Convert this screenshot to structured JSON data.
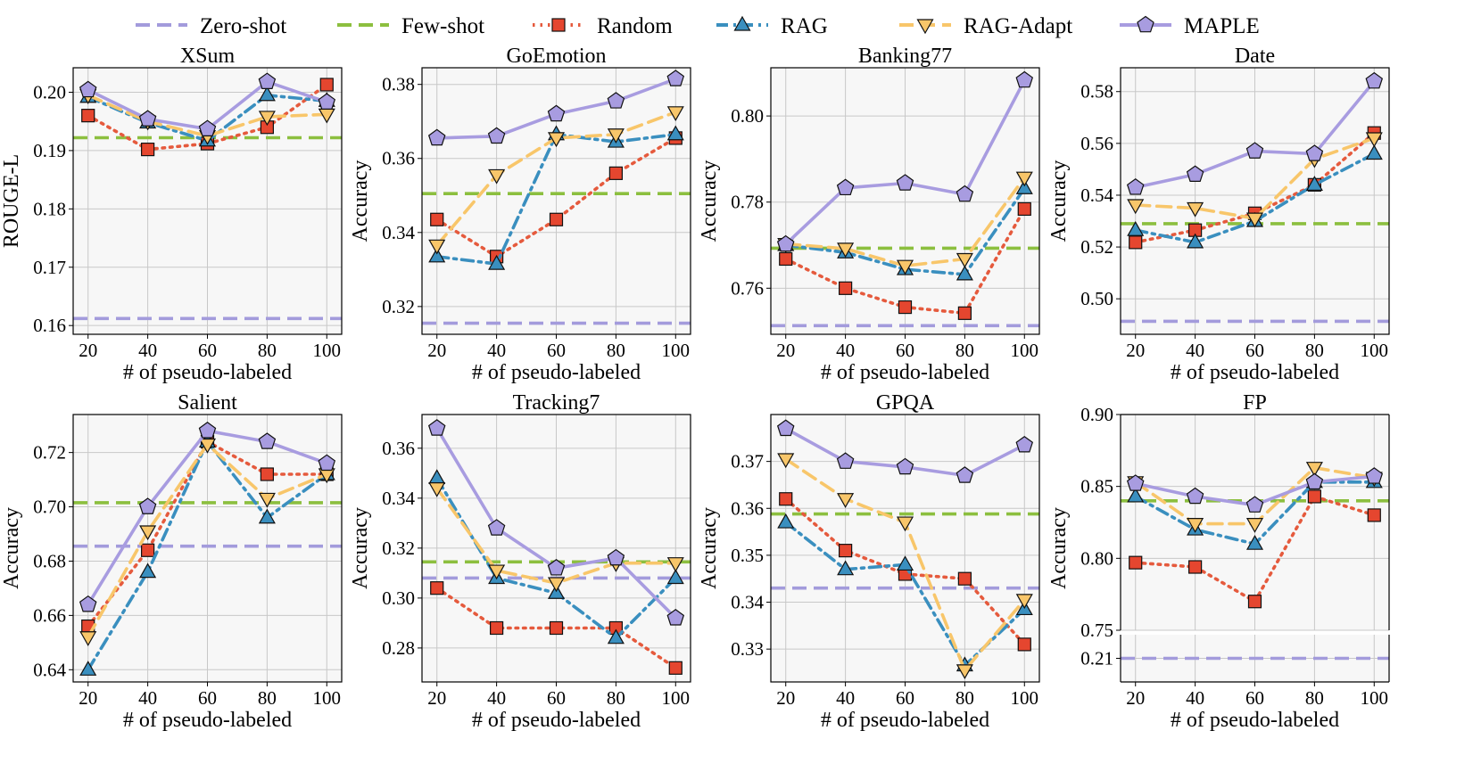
{
  "legend": [
    {
      "key": "zero",
      "label": "Zero-shot"
    },
    {
      "key": "few",
      "label": "Few-shot"
    },
    {
      "key": "random",
      "label": "Random"
    },
    {
      "key": "rag",
      "label": "RAG"
    },
    {
      "key": "ragadapt",
      "label": "RAG-Adapt"
    },
    {
      "key": "maple",
      "label": "MAPLE"
    }
  ],
  "styles": {
    "zero": {
      "color": "#a39bdc",
      "dash": "dash",
      "marker": "none"
    },
    "few": {
      "color": "#8cbf3f",
      "dash": "dash",
      "marker": "none"
    },
    "random": {
      "color": "#e55a3d",
      "dash": "dot",
      "marker": "square",
      "fill": "#e5462f"
    },
    "rag": {
      "color": "#3a8fbf",
      "dash": "dashdot",
      "marker": "triangle",
      "fill": "#3a8fbf"
    },
    "ragadapt": {
      "color": "#f8c66a",
      "dash": "dash",
      "marker": "triangle-down",
      "fill": "#f8c66a"
    },
    "maple": {
      "color": "#a89ce0",
      "dash": "solid",
      "marker": "pentagon",
      "fill": "#a89ce0"
    }
  },
  "chart_data": [
    {
      "type": "line",
      "title": "XSum",
      "xlabel": "# of pseudo-labeled",
      "ylabel": "ROUGE-L",
      "x": [
        20,
        40,
        60,
        80,
        100
      ],
      "ylim": [
        0.1585,
        0.2042
      ],
      "yticks": [
        0.16,
        0.17,
        0.18,
        0.19,
        0.2
      ],
      "ytick_labels": [
        "0.16",
        "0.17",
        "0.18",
        "0.19",
        "0.20"
      ],
      "hlines": {
        "zero": 0.1612,
        "few": 0.1922
      },
      "series": [
        {
          "key": "random",
          "name": "Random",
          "values": [
            0.196,
            0.1902,
            0.1912,
            0.194,
            0.2013
          ]
        },
        {
          "key": "rag",
          "name": "RAG",
          "values": [
            0.1992,
            0.1948,
            0.1917,
            0.1995,
            0.1985
          ]
        },
        {
          "key": "ragadapt",
          "name": "RAG-Adapt",
          "values": [
            0.1995,
            0.195,
            0.1925,
            0.1958,
            0.1962
          ]
        },
        {
          "key": "maple",
          "name": "MAPLE",
          "values": [
            0.2004,
            0.1954,
            0.1937,
            0.2018,
            0.1983
          ]
        }
      ]
    },
    {
      "type": "line",
      "title": "GoEmotion",
      "xlabel": "# of pseudo-labeled",
      "ylabel": "Accuracy",
      "x": [
        20,
        40,
        60,
        80,
        100
      ],
      "ylim": [
        0.3125,
        0.3845
      ],
      "yticks": [
        0.32,
        0.34,
        0.36,
        0.38
      ],
      "ytick_labels": [
        "0.32",
        "0.34",
        "0.36",
        "0.38"
      ],
      "hlines": {
        "zero": 0.3155,
        "few": 0.3505
      },
      "series": [
        {
          "key": "random",
          "name": "Random",
          "values": [
            0.3435,
            0.3335,
            0.3435,
            0.356,
            0.3655
          ]
        },
        {
          "key": "rag",
          "name": "RAG",
          "values": [
            0.3335,
            0.3315,
            0.3665,
            0.3645,
            0.3665
          ]
        },
        {
          "key": "ragadapt",
          "name": "RAG-Adapt",
          "values": [
            0.3365,
            0.3555,
            0.3655,
            0.3665,
            0.3725
          ]
        },
        {
          "key": "maple",
          "name": "MAPLE",
          "values": [
            0.3655,
            0.366,
            0.372,
            0.3755,
            0.3815
          ]
        }
      ]
    },
    {
      "type": "line",
      "title": "Banking77",
      "xlabel": "# of pseudo-labeled",
      "ylabel": "Accuracy",
      "x": [
        20,
        40,
        60,
        80,
        100
      ],
      "ylim": [
        0.7493,
        0.8112
      ],
      "yticks": [
        0.76,
        0.78,
        0.8
      ],
      "ytick_labels": [
        "0.76",
        "0.78",
        "0.80"
      ],
      "hlines": {
        "zero": 0.7513,
        "few": 0.7693
      },
      "series": [
        {
          "key": "random",
          "name": "Random",
          "values": [
            0.7668,
            0.76,
            0.7556,
            0.7542,
            0.7784
          ]
        },
        {
          "key": "rag",
          "name": "RAG",
          "values": [
            0.77,
            0.7683,
            0.7644,
            0.7632,
            0.7832
          ]
        },
        {
          "key": "ragadapt",
          "name": "RAG-Adapt",
          "values": [
            0.7703,
            0.7692,
            0.7652,
            0.7668,
            0.7857
          ]
        },
        {
          "key": "maple",
          "name": "MAPLE",
          "values": [
            0.7702,
            0.7833,
            0.7844,
            0.7818,
            0.8083
          ]
        }
      ]
    },
    {
      "type": "line",
      "title": "Date",
      "xlabel": "# of pseudo-labeled",
      "ylabel": "Accuracy",
      "x": [
        20,
        40,
        60,
        80,
        100
      ],
      "ylim": [
        0.4863,
        0.5892
      ],
      "yticks": [
        0.5,
        0.52,
        0.54,
        0.56,
        0.58
      ],
      "ytick_labels": [
        "0.50",
        "0.52",
        "0.54",
        "0.56",
        "0.58"
      ],
      "hlines": {
        "zero": 0.4913,
        "few": 0.529
      },
      "series": [
        {
          "key": "random",
          "name": "Random",
          "values": [
            0.5218,
            0.5265,
            0.533,
            0.544,
            0.564
          ]
        },
        {
          "key": "rag",
          "name": "RAG",
          "values": [
            0.5265,
            0.5218,
            0.53,
            0.544,
            0.556
          ]
        },
        {
          "key": "ragadapt",
          "name": "RAG-Adapt",
          "values": [
            0.5362,
            0.535,
            0.531,
            0.554,
            0.562
          ]
        },
        {
          "key": "maple",
          "name": "MAPLE",
          "values": [
            0.543,
            0.548,
            0.557,
            0.556,
            0.584
          ]
        }
      ]
    },
    {
      "type": "line",
      "title": "Salient",
      "xlabel": "# of pseudo-labeled",
      "ylabel": "Accuracy",
      "x": [
        20,
        40,
        60,
        80,
        100
      ],
      "ylim": [
        0.6355,
        0.734
      ],
      "yticks": [
        0.64,
        0.66,
        0.68,
        0.7,
        0.72
      ],
      "ytick_labels": [
        "0.64",
        "0.66",
        "0.68",
        "0.70",
        "0.72"
      ],
      "hlines": {
        "zero": 0.6855,
        "few": 0.7015
      },
      "series": [
        {
          "key": "random",
          "name": "Random",
          "values": [
            0.656,
            0.684,
            0.724,
            0.712,
            0.712
          ]
        },
        {
          "key": "rag",
          "name": "RAG",
          "values": [
            0.64,
            0.676,
            0.724,
            0.696,
            0.712
          ]
        },
        {
          "key": "ragadapt",
          "name": "RAG-Adapt",
          "values": [
            0.652,
            0.691,
            0.723,
            0.703,
            0.712
          ]
        },
        {
          "key": "maple",
          "name": "MAPLE",
          "values": [
            0.664,
            0.7,
            0.728,
            0.724,
            0.716
          ]
        }
      ]
    },
    {
      "type": "line",
      "title": "Tracking7",
      "xlabel": "# of pseudo-labeled",
      "ylabel": "Accuracy",
      "x": [
        20,
        40,
        60,
        80,
        100
      ],
      "ylim": [
        0.2664,
        0.3735
      ],
      "yticks": [
        0.28,
        0.3,
        0.32,
        0.34,
        0.36
      ],
      "ytick_labels": [
        "0.28",
        "0.30",
        "0.32",
        "0.34",
        "0.36"
      ],
      "hlines": {
        "zero": 0.308,
        "few": 0.3145
      },
      "series": [
        {
          "key": "random",
          "name": "Random",
          "values": [
            0.304,
            0.288,
            0.288,
            0.288,
            0.272
          ]
        },
        {
          "key": "rag",
          "name": "RAG",
          "values": [
            0.348,
            0.308,
            0.302,
            0.284,
            0.308
          ]
        },
        {
          "key": "ragadapt",
          "name": "RAG-Adapt",
          "values": [
            0.344,
            0.311,
            0.306,
            0.314,
            0.314
          ]
        },
        {
          "key": "maple",
          "name": "MAPLE",
          "values": [
            0.368,
            0.328,
            0.312,
            0.316,
            0.292
          ]
        }
      ]
    },
    {
      "type": "line",
      "title": "GPQA",
      "xlabel": "# of pseudo-labeled",
      "ylabel": "Accuracy",
      "x": [
        20,
        40,
        60,
        80,
        100
      ],
      "ylim": [
        0.323,
        0.38
      ],
      "yticks": [
        0.33,
        0.34,
        0.35,
        0.36,
        0.37
      ],
      "ytick_labels": [
        "0.33",
        "0.34",
        "0.35",
        "0.36",
        "0.37"
      ],
      "hlines": {
        "zero": 0.343,
        "few": 0.3588
      },
      "series": [
        {
          "key": "random",
          "name": "Random",
          "values": [
            0.362,
            0.351,
            0.346,
            0.345,
            0.331
          ]
        },
        {
          "key": "rag",
          "name": "RAG",
          "values": [
            0.357,
            0.347,
            0.348,
            0.3265,
            0.3385
          ]
        },
        {
          "key": "ragadapt",
          "name": "RAG-Adapt",
          "values": [
            0.3705,
            0.362,
            0.357,
            0.3255,
            0.3405
          ]
        },
        {
          "key": "maple",
          "name": "MAPLE",
          "values": [
            0.377,
            0.37,
            0.3688,
            0.367,
            0.3735
          ]
        }
      ]
    },
    {
      "type": "line",
      "title": "FP",
      "xlabel": "# of pseudo-labeled",
      "ylabel": "Accuracy",
      "x": [
        20,
        40,
        60,
        80,
        100
      ],
      "broken_axis": true,
      "upper_ylim": [
        0.75,
        0.9
      ],
      "upper_yticks": [
        0.75,
        0.8,
        0.85,
        0.9
      ],
      "upper_ytick_labels": [
        "0.75",
        "0.80",
        "0.85",
        "0.90"
      ],
      "lower_ylim": [
        0.195,
        0.225
      ],
      "lower_yticks": [
        0.21
      ],
      "lower_ytick_labels": [
        "0.21"
      ],
      "hlines": {
        "zero": 0.21,
        "few": 0.84
      },
      "series": [
        {
          "key": "random",
          "name": "Random",
          "values": [
            0.797,
            0.794,
            0.77,
            0.843,
            0.83
          ]
        },
        {
          "key": "rag",
          "name": "RAG",
          "values": [
            0.843,
            0.82,
            0.81,
            0.853,
            0.853
          ]
        },
        {
          "key": "ragadapt",
          "name": "RAG-Adapt",
          "values": [
            0.853,
            0.824,
            0.824,
            0.863,
            0.856
          ]
        },
        {
          "key": "maple",
          "name": "MAPLE",
          "values": [
            0.852,
            0.843,
            0.837,
            0.853,
            0.857
          ]
        }
      ]
    }
  ]
}
